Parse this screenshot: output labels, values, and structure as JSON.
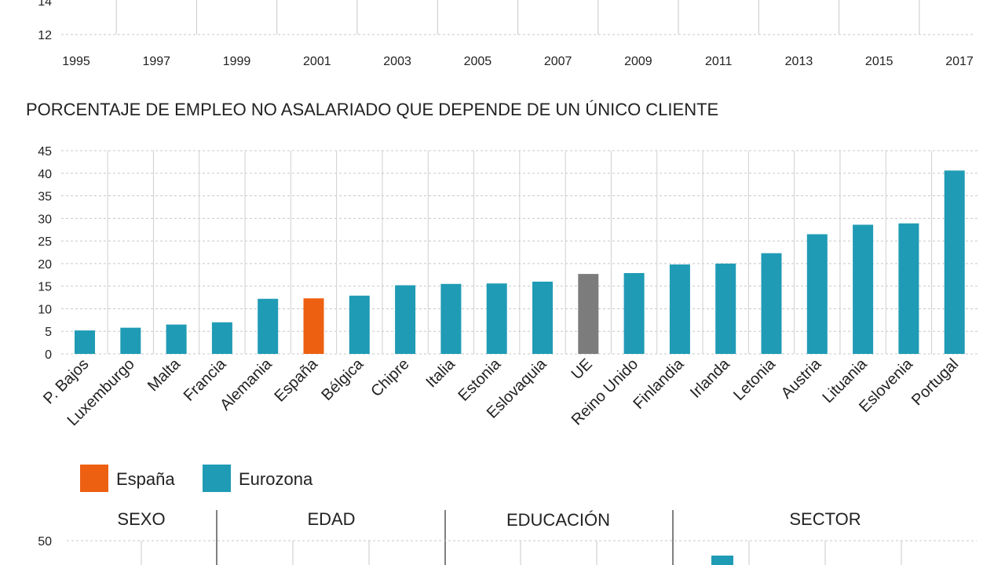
{
  "top_strip": {
    "y_ticks": [
      "12",
      "14"
    ],
    "years": [
      "1995",
      "1997",
      "1999",
      "2001",
      "2003",
      "2005",
      "2007",
      "2009",
      "2011",
      "2013",
      "2015",
      "2017"
    ]
  },
  "chart_data": {
    "type": "bar",
    "title": "PORCENTAJE DE EMPLEO NO ASALARIADO QUE DEPENDE DE UN ÚNICO CLIENTE",
    "categories": [
      "P. Bajos",
      "Luxemburgo",
      "Malta",
      "Francia",
      "Alemania",
      "España",
      "Bélgica",
      "Chipre",
      "Italia",
      "Estonia",
      "Eslovaquia",
      "UE",
      "Reino Unido",
      "Finlandia",
      "Irlanda",
      "Letonia",
      "Austria",
      "Lituania",
      "Eslovenia",
      "Portugal"
    ],
    "values": [
      5.2,
      5.8,
      6.5,
      7.0,
      12.2,
      12.3,
      12.9,
      15.2,
      15.5,
      15.6,
      16.0,
      17.7,
      17.9,
      19.8,
      20.0,
      22.3,
      26.5,
      28.6,
      28.9,
      40.6
    ],
    "group": [
      "Eurozona",
      "Eurozona",
      "Eurozona",
      "Eurozona",
      "Eurozona",
      "España",
      "Eurozona",
      "Eurozona",
      "Eurozona",
      "Eurozona",
      "Eurozona",
      "UE",
      "Eurozona",
      "Eurozona",
      "Eurozona",
      "Eurozona",
      "Eurozona",
      "Eurozona",
      "Eurozona",
      "Eurozona"
    ],
    "colors": {
      "España": "#ee6011",
      "Eurozona": "#1f9bb5",
      "UE": "#7c7c7c"
    },
    "ylim": [
      0,
      45
    ],
    "y_ticks": [
      "0",
      "5",
      "10",
      "15",
      "20",
      "25",
      "30",
      "35",
      "40",
      "45"
    ],
    "grid": true,
    "legend": [
      {
        "label": "España",
        "color": "#ee6011"
      },
      {
        "label": "Eurozona",
        "color": "#1f9bb5"
      }
    ]
  },
  "bottom_panel": {
    "headers": [
      "SEXO",
      "EDAD",
      "EDUCACIÓN",
      "SECTOR"
    ],
    "y_tick": "50"
  }
}
